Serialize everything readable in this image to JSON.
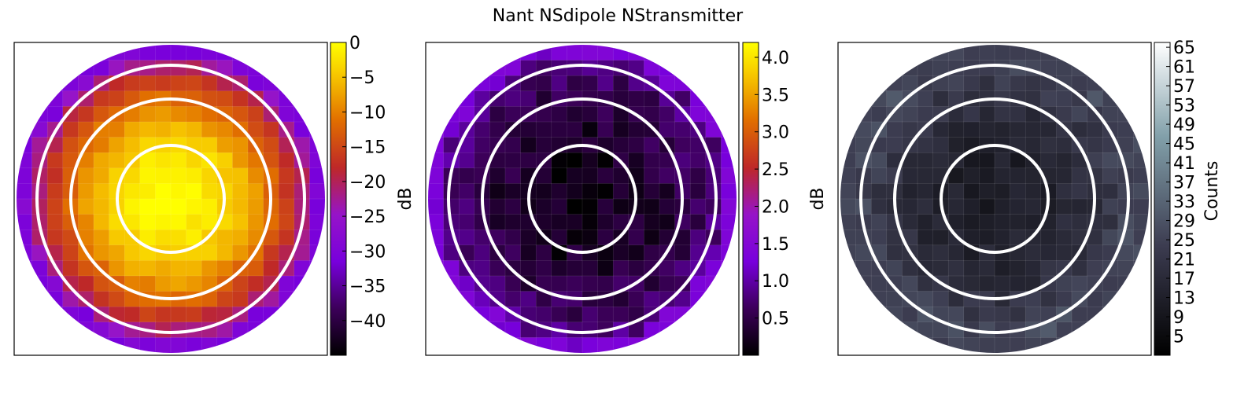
{
  "figure": {
    "title": "Nant NSdipole NStransmitter"
  },
  "chart_data": [
    {
      "type": "heatmap",
      "projection": "polar-sky",
      "value_field": "power",
      "colormap": "gnuplot",
      "colorbar": {
        "label": "dB",
        "ticks": [
          0,
          -5,
          -10,
          -15,
          -20,
          -25,
          -30,
          -35,
          -40
        ],
        "range": [
          -45,
          0
        ]
      },
      "center_value": 0,
      "edge_value": -28,
      "rings": 3,
      "grid": true
    },
    {
      "type": "heatmap",
      "projection": "polar-sky",
      "value_field": "power_stddev",
      "colormap": "gnuplot",
      "colorbar": {
        "label": "dB",
        "ticks": [
          4.0,
          3.5,
          3.0,
          2.5,
          2.0,
          1.5,
          1.0,
          0.5
        ],
        "range": [
          0,
          4.2
        ]
      },
      "center_value": 0.15,
      "edge_value": 1.0,
      "rings": 3,
      "grid": true
    },
    {
      "type": "heatmap",
      "projection": "polar-sky",
      "value_field": "counts",
      "colormap": "bone",
      "colorbar": {
        "label": "Counts",
        "ticks": [
          65,
          61,
          57,
          53,
          49,
          45,
          41,
          37,
          33,
          29,
          25,
          21,
          17,
          13,
          9,
          5
        ],
        "range": [
          1,
          66
        ]
      },
      "center_value": 12,
      "edge_value": 30,
      "rings": 3,
      "grid": true
    }
  ]
}
